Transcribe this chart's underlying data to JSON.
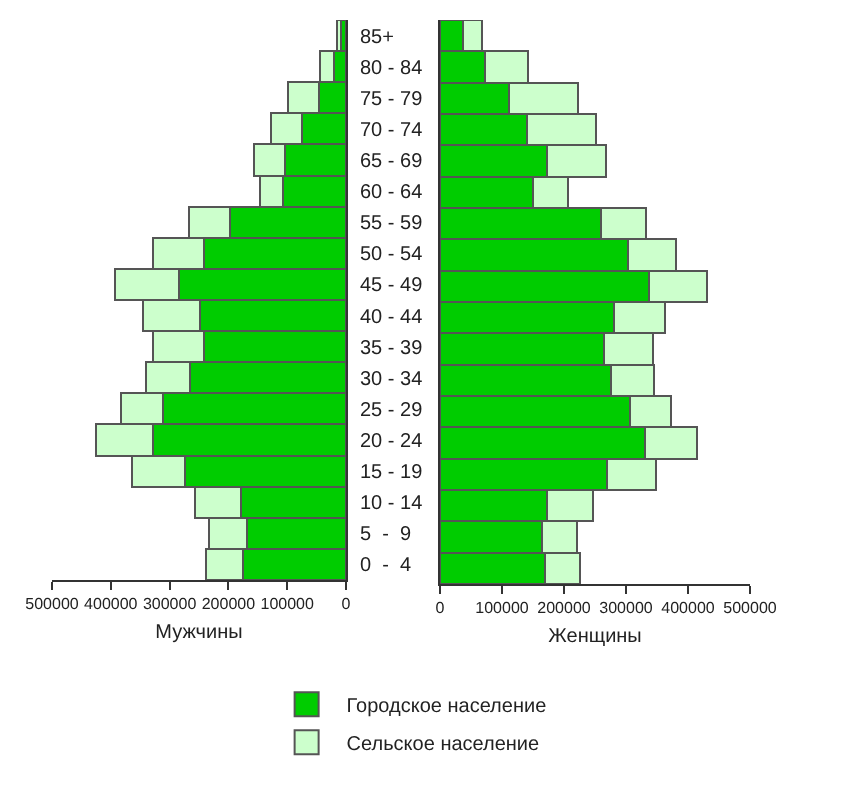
{
  "chart_data": [
    {
      "type": "bar",
      "orientation": "horizontal",
      "stacked": true,
      "xlabel": "Мужчины",
      "legend": "bottom",
      "categories": [
        "85+",
        "80 - 84",
        "75 - 79",
        "70 - 74",
        "65 - 69",
        "60 - 64",
        "55 - 59",
        "50 - 54",
        "45 - 49",
        "40 - 44",
        "35 - 39",
        "30 - 34",
        "25 - 29",
        "20 - 24",
        "15 - 19",
        "10 - 14",
        "5  -  9",
        "0  -  4"
      ],
      "xlim": [
        500000,
        0
      ],
      "xticks": [
        500000,
        400000,
        300000,
        200000,
        100000,
        0
      ],
      "series": [
        {
          "name": "Городское население",
          "color": "#00cc00",
          "values": [
            8000,
            21000,
            46000,
            74000,
            103000,
            107000,
            197000,
            241000,
            284000,
            248000,
            241000,
            265000,
            311000,
            328000,
            273000,
            179000,
            169000,
            175000
          ]
        },
        {
          "name": "Сельское население",
          "color": "#ccffcc",
          "values": [
            8000,
            24000,
            52000,
            54000,
            54000,
            40000,
            70000,
            88000,
            109000,
            97000,
            88000,
            76000,
            71000,
            98000,
            91000,
            77000,
            64000,
            63000
          ]
        }
      ]
    },
    {
      "type": "bar",
      "orientation": "horizontal",
      "stacked": true,
      "xlabel": "Женщины",
      "tick_labels": "x",
      "categories": [
        null,
        null,
        null,
        null,
        null,
        null,
        null,
        null,
        null,
        null,
        null,
        null,
        null,
        null,
        null,
        null,
        null,
        null
      ],
      "xlim": [
        0,
        500000
      ],
      "xticks": [
        0,
        100000,
        200000,
        300000,
        400000,
        500000
      ],
      "series": [
        {
          "color": "#00cc00",
          "values": [
            37000,
            73000,
            111000,
            140000,
            172000,
            150000,
            260000,
            303000,
            337000,
            281000,
            265000,
            276000,
            307000,
            331000,
            270000,
            172000,
            164000,
            169000
          ]
        },
        {
          "color": "#ccffcc",
          "values": [
            30000,
            69000,
            112000,
            112000,
            96000,
            56000,
            73000,
            78000,
            93000,
            82000,
            78000,
            69000,
            65000,
            83000,
            79000,
            74000,
            57000,
            57000
          ]
        }
      ]
    }
  ]
}
